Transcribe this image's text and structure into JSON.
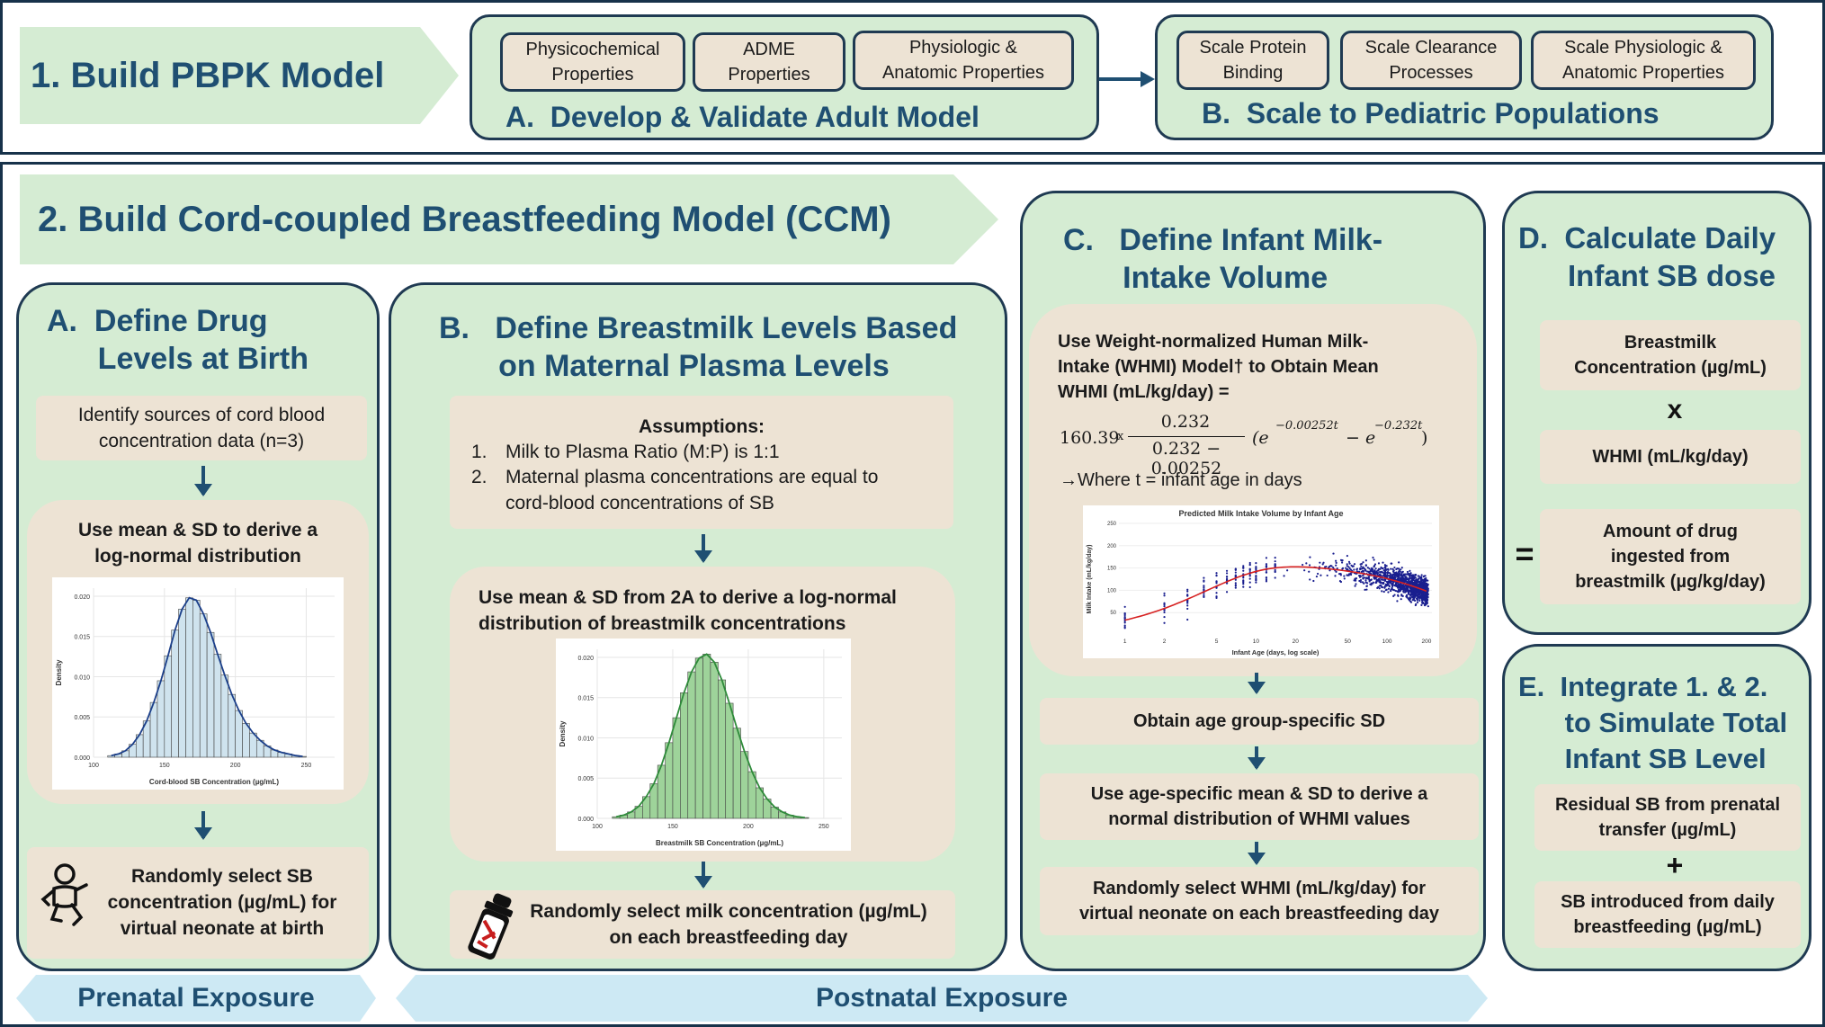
{
  "step1": {
    "title": "1. Build PBPK Model",
    "a": {
      "title": "A.  Develop & Validate Adult Model",
      "boxes": [
        "Physicochemical\nProperties",
        "ADME\nProperties",
        "Physiologic &\nAnatomic Properties"
      ]
    },
    "b": {
      "title": "B.  Scale to Pediatric Populations",
      "boxes": [
        "Scale Protein\nBinding",
        "Scale Clearance\nProcesses",
        "Scale Physiologic &\nAnatomic Properties"
      ]
    }
  },
  "step2": {
    "title": "2. Build Cord-coupled Breastfeeding Model (CCM)",
    "a": {
      "title": "A.  Define Drug\n      Levels at Birth",
      "box1": "Identify sources of cord blood\nconcentration data (n=3)",
      "box2": "Use mean & SD to derive a\nlog-normal distribution",
      "box3": "Randomly select SB\nconcentration (µg/mL) for\nvirtual neonate at birth",
      "icon": "baby-icon"
    },
    "b": {
      "title": "B.   Define Breastmilk Levels Based\n       on Maternal Plasma Levels",
      "assumptions_title": "Assumptions:",
      "assumptions": [
        {
          "num": "1.",
          "text": "Milk to Plasma Ratio (M:P) is 1:1"
        },
        {
          "num": "2.",
          "text": "Maternal plasma concentrations are equal to\ncord-blood concentrations of SB"
        }
      ],
      "box2": "Use mean & SD from 2A to derive a log-normal\ndistribution of breastmilk concentrations",
      "box3": "Randomly select milk concentration (µg/mL)\non each  breastfeeding day",
      "icon": "baby-bottle-icon"
    },
    "c": {
      "title": "C.   Define Infant Milk-\n       Intake Volume",
      "box1": "Use Weight-normalized Human Milk-\nIntake (WHMI) Model† to Obtain Mean\nWHMI (mL/kg/day) =",
      "formula": {
        "lead": "160.39",
        "times": "x",
        "numerator": "0.232",
        "denominator": "0.232 − 0.00252",
        "tail": "(e",
        "exp1": "−0.00252t",
        "minus": " − e",
        "exp2": "−0.232t",
        "close": ")"
      },
      "where": "→Where t = infant age in days",
      "box2": "Obtain age group-specific SD",
      "box3": "Use age-specific mean & SD to derive a\nnormal distribution of WHMI values",
      "box4": "Randomly select WHMI (mL/kg/day) for\nvirtual neonate on each breastfeeding day"
    },
    "d": {
      "title": "D.  Calculate Daily\n      Infant SB dose",
      "box1": "Breastmilk\nConcentration (µg/mL)",
      "times": "x",
      "box2": "WHMI (mL/kg/day)",
      "equals": "=",
      "box3": "Amount of drug\ningested from\nbreastmilk (µg/kg/day)"
    },
    "e": {
      "title": "E.  Integrate 1. & 2.\n      to Simulate Total\n      Infant SB Level",
      "box1": "Residual SB from prenatal\ntransfer (µg/mL)",
      "plus": "+",
      "box2": "SB introduced from daily\nbreastfeeding (µg/mL)"
    }
  },
  "footer": {
    "prenatal": "Prenatal Exposure",
    "postnatal": "Postnatal Exposure"
  },
  "chart_data": [
    {
      "type": "bar",
      "title": "",
      "xlabel": "Cord-blood SB Concentration (µg/mL)",
      "ylabel": "Density",
      "x_ticks": [
        "100",
        "150",
        "200",
        "250"
      ],
      "y_ticks": [
        "0.000",
        "0.005",
        "0.010",
        "0.015",
        "0.020"
      ],
      "xlim": [
        100,
        270
      ],
      "ylim": [
        0,
        0.021
      ],
      "bar_color": "#cfe3ee",
      "curve_color": "#1b3f8a",
      "bin_width": 5,
      "bins_start": 110,
      "values": [
        0.0002,
        0.0004,
        0.0008,
        0.0016,
        0.0028,
        0.0045,
        0.0068,
        0.0095,
        0.0126,
        0.0158,
        0.0184,
        0.0198,
        0.0195,
        0.0178,
        0.0155,
        0.0128,
        0.0102,
        0.0078,
        0.0058,
        0.0042,
        0.003,
        0.0021,
        0.0014,
        0.0009,
        0.0006,
        0.0004,
        0.0002,
        0.0001
      ]
    },
    {
      "type": "bar",
      "title": "",
      "xlabel": "Breastmilk SB Concentration (µg/mL)",
      "ylabel": "Density",
      "x_ticks": [
        "100",
        "150",
        "200",
        "250"
      ],
      "y_ticks": [
        "0.000",
        "0.005",
        "0.010",
        "0.015",
        "0.020"
      ],
      "xlim": [
        100,
        262
      ],
      "ylim": [
        0,
        0.021
      ],
      "bar_color": "#9ed39a",
      "curve_color": "#2e8b3a",
      "bin_width": 5,
      "bins_start": 110,
      "values": [
        0.0002,
        0.0004,
        0.0008,
        0.0015,
        0.0027,
        0.0043,
        0.0066,
        0.0094,
        0.0125,
        0.0156,
        0.0182,
        0.0199,
        0.0204,
        0.0194,
        0.0172,
        0.0143,
        0.0112,
        0.0083,
        0.0058,
        0.0038,
        0.0024,
        0.0014,
        0.0008,
        0.0004,
        0.0002,
        0.0001
      ]
    },
    {
      "type": "scatter",
      "title": "Predicted Milk Intake Volume by Infant Age",
      "xlabel": "Infant Age (days, log scale)",
      "ylabel": "Milk Intake (mL/kg/day)",
      "x_scale": "log",
      "x_ticks": [
        "1",
        "2",
        "5",
        "10",
        "20",
        "50",
        "100",
        "200"
      ],
      "y_ticks": [
        "50",
        "100",
        "150",
        "200",
        "250"
      ],
      "xlim": [
        0.9,
        220
      ],
      "ylim": [
        0,
        250
      ],
      "point_color": "#1a1f8f",
      "curve_color": "#d62020",
      "curve": "160.39*0.232/(0.232-0.00252)*(exp(-0.00252t)-exp(-0.232t))"
    }
  ],
  "colors": {
    "navy": "#1f4f72",
    "frame": "#17324a",
    "green": "#d5ecd3",
    "beige": "#ede3d4",
    "blue_banner": "#cde9f4"
  }
}
